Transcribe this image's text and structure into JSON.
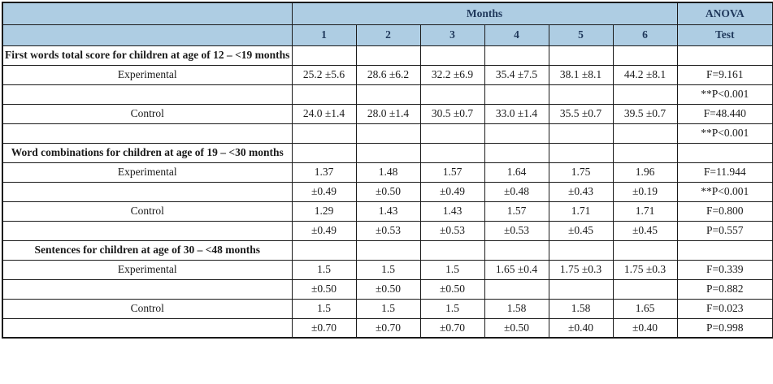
{
  "table": {
    "header": {
      "months_label": "Months",
      "anova_label": "ANOVA",
      "month_columns": [
        "1",
        "2",
        "3",
        "4",
        "5",
        "6"
      ],
      "test_label": "Test"
    },
    "sections": [
      {
        "title": "First words total score for children at age of 12 – <19 months",
        "rows": [
          {
            "label": "Experimental",
            "values": [
              "25.2 ±5.6",
              "28.6 ±6.2",
              "32.2 ±6.9",
              "35.4 ±7.5",
              "38.1 ±8.1",
              "44.2 ±8.1"
            ],
            "anova": "F=9.161"
          },
          {
            "label": "",
            "values": [
              "",
              "",
              "",
              "",
              "",
              ""
            ],
            "anova": "**P<0.001"
          },
          {
            "label": "Control",
            "values": [
              "24.0 ±1.4",
              "28.0 ±1.4",
              "30.5 ±0.7",
              "33.0 ±1.4",
              "35.5 ±0.7",
              "39.5 ±0.7"
            ],
            "anova": "F=48.440"
          },
          {
            "label": "",
            "values": [
              "",
              "",
              "",
              "",
              "",
              ""
            ],
            "anova": "**P<0.001"
          }
        ]
      },
      {
        "title": "Word combinations for children at age of 19 – <30 months",
        "rows": [
          {
            "label": "Experimental",
            "values": [
              "1.37",
              "1.48",
              "1.57",
              "1.64",
              "1.75",
              "1.96"
            ],
            "anova": "F=11.944"
          },
          {
            "label": "",
            "values": [
              "±0.49",
              "±0.50",
              "±0.49",
              "±0.48",
              "±0.43",
              "±0.19"
            ],
            "anova": "**P<0.001"
          },
          {
            "label": "Control",
            "values": [
              "1.29",
              "1.43",
              "1.43",
              "1.57",
              "1.71",
              "1.71"
            ],
            "anova": "F=0.800"
          },
          {
            "label": "",
            "values": [
              "±0.49",
              "±0.53",
              "±0.53",
              "±0.53",
              "±0.45",
              "±0.45"
            ],
            "anova": "P=0.557"
          }
        ]
      },
      {
        "title": "Sentences for children at age of 30 – <48 months",
        "rows": [
          {
            "label": "Experimental",
            "values": [
              "1.5",
              "1.5",
              "1.5",
              "1.65 ±0.4",
              "1.75 ±0.3",
              "1.75 ±0.3"
            ],
            "anova": "F=0.339"
          },
          {
            "label": "",
            "values": [
              "±0.50",
              "±0.50",
              "±0.50",
              "",
              "",
              ""
            ],
            "anova": "P=0.882"
          },
          {
            "label": "Control",
            "values": [
              "1.5",
              "1.5",
              "1.5",
              "1.58",
              "1.58",
              "1.65"
            ],
            "anova": "F=0.023"
          },
          {
            "label": "",
            "values": [
              "±0.70",
              "±0.70",
              "±0.70",
              "±0.50",
              "±0.40",
              "±0.40"
            ],
            "anova": "P=0.998"
          }
        ]
      }
    ],
    "colors": {
      "header_background": "#aecde3",
      "header_text": "#20395c",
      "body_text": "#1a1a1a",
      "border": "#1a1a1a"
    }
  }
}
